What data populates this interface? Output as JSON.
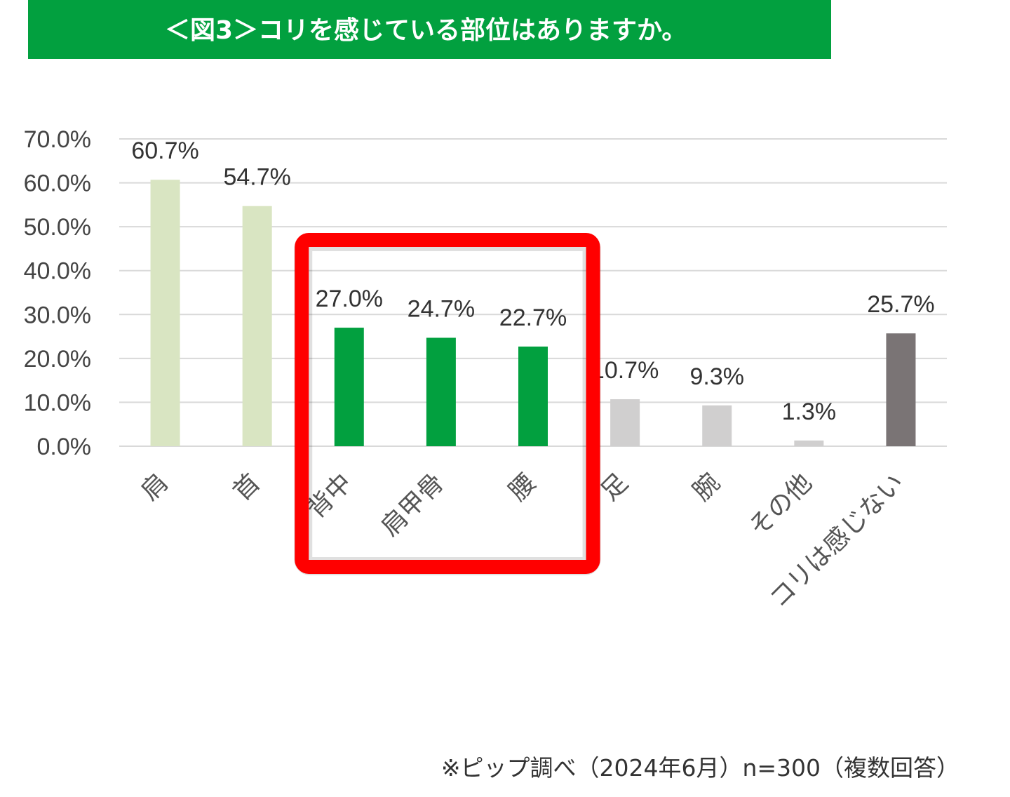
{
  "header": {
    "title": "＜図3＞コリを感じている部位はありますか。"
  },
  "footnote": "※ピップ調べ（2024年6月）n=300（複数回答）",
  "colors": {
    "title_bg": "#02a03f",
    "highlight_bar": "#02a03f",
    "light_green_bar": "#d9e5c2",
    "gray_bar": "#d0cfcf",
    "dark_bar": "#7a7475",
    "highlight_box": "#ff0000",
    "grid": "#d9d9d9"
  },
  "chart_data": {
    "type": "bar",
    "title": "＜図3＞コリを感じている部位はありますか。",
    "categories": [
      "肩",
      "首",
      "背中",
      "肩甲骨",
      "腰",
      "足",
      "腕",
      "その他",
      "コリは感じない"
    ],
    "values": [
      60.7,
      54.7,
      27.0,
      24.7,
      22.7,
      10.7,
      9.3,
      1.3,
      25.7
    ],
    "value_labels": [
      "60.7%",
      "54.7%",
      "27.0%",
      "24.7%",
      "22.7%",
      "10.7%",
      "9.3%",
      "1.3%",
      "25.7%"
    ],
    "bar_colors": [
      "#d9e5c2",
      "#d9e5c2",
      "#02a03f",
      "#02a03f",
      "#02a03f",
      "#d0cfcf",
      "#d0cfcf",
      "#d0cfcf",
      "#7a7475"
    ],
    "ylim": [
      0,
      70
    ],
    "yticks": [
      0,
      10,
      20,
      30,
      40,
      50,
      60,
      70
    ],
    "ytick_labels": [
      "0.0%",
      "10.0%",
      "20.0%",
      "30.0%",
      "40.0%",
      "50.0%",
      "60.0%",
      "70.0%"
    ],
    "highlighted_categories": [
      "背中",
      "肩甲骨",
      "腰"
    ],
    "grid": true,
    "legend": "none",
    "xlabel": "",
    "ylabel": ""
  }
}
